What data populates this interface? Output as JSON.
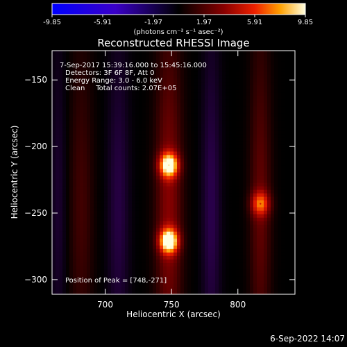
{
  "colorbar": {
    "ticks": [
      "-9.85",
      "-5.91",
      "-1.97",
      "1.97",
      "5.91",
      "9.85"
    ],
    "unit_label": "(photons cm⁻² s⁻¹ asec⁻²)",
    "range": [
      -9.85,
      9.85
    ]
  },
  "chart_data": {
    "type": "heatmap",
    "title": "Reconstructed RHESSI Image",
    "xlabel": "Heliocentric X (arcsec)",
    "ylabel": "Heliocentric Y (arcsec)",
    "xlim": [
      660,
      843
    ],
    "ylim": [
      -311,
      -128
    ],
    "x_ticks": [
      700,
      750,
      800
    ],
    "y_ticks": [
      -150,
      -200,
      -250,
      -300
    ],
    "annotations": [
      "7-Sep-2017 15:39:16.000 to 15:45:16.000",
      "Detectors: 3F 6F 8F, Att 0",
      "Energy Range: 3.0 - 6.0 keV",
      "Clean     Total counts: 2.07E+05"
    ],
    "peak_text": "Position of Peak = [748,-271]",
    "peaks": [
      {
        "x": 748,
        "y": -271,
        "value": 9.85
      },
      {
        "x": 748,
        "y": -214,
        "value": 9.3
      },
      {
        "x": 817,
        "y": -243,
        "value": 5.2
      }
    ],
    "ridges": [
      {
        "x": 748,
        "value": 3.3,
        "width": 10
      },
      {
        "x": 817,
        "value": 2.4,
        "width": 8
      },
      {
        "x": 682,
        "value": 1.6,
        "width": 9
      },
      {
        "x": 710,
        "value": -1.4,
        "width": 8
      },
      {
        "x": 780,
        "value": -1.6,
        "width": 7
      },
      {
        "x": 665,
        "value": -1.0,
        "width": 6
      }
    ]
  },
  "footer": {
    "timestamp": "6-Sep-2022 14:07"
  }
}
